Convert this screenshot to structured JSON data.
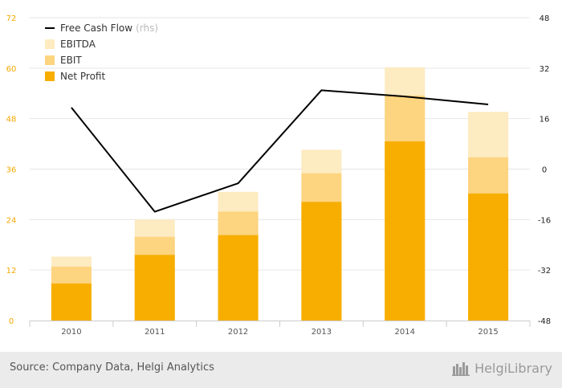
{
  "chart_data": {
    "type": "bar",
    "categories": [
      "2010",
      "2011",
      "2012",
      "2013",
      "2014",
      "2015"
    ],
    "series": [
      {
        "name": "EBITDA",
        "kind": "bar",
        "values": [
          15.2,
          24.0,
          30.6,
          40.6,
          60.2,
          49.6
        ],
        "color": "#fdebc1"
      },
      {
        "name": "EBIT",
        "kind": "bar",
        "values": [
          12.8,
          19.9,
          25.9,
          35.0,
          53.5,
          38.8
        ],
        "color": "#fdd47f"
      },
      {
        "name": "Net Profit",
        "kind": "bar",
        "values": [
          8.8,
          15.6,
          20.3,
          28.2,
          42.6,
          30.2
        ],
        "color": "#f7ae00"
      },
      {
        "name": "Free Cash Flow",
        "kind": "line",
        "axis": "right",
        "values": [
          19.5,
          -13.5,
          -4.5,
          25.0,
          23.0,
          20.5
        ],
        "color": "#000000"
      }
    ],
    "legend": [
      {
        "label": "Free Cash Flow",
        "suffix": "(rhs)",
        "marker": "line",
        "color": "#000000"
      },
      {
        "label": "EBITDA",
        "marker": "square",
        "color": "#fdebc1"
      },
      {
        "label": "EBIT",
        "marker": "square",
        "color": "#fdd47f"
      },
      {
        "label": "Net Profit",
        "marker": "square",
        "color": "#f7ae00"
      }
    ],
    "legend_position": "top-left",
    "y_left": {
      "min": 0,
      "max": 72,
      "ticks": [
        0,
        12,
        24,
        36,
        48,
        60,
        72
      ],
      "tick_color": "#f5a800"
    },
    "y_right": {
      "min": -48,
      "max": 48,
      "ticks": [
        -48,
        -32,
        -16,
        0,
        16,
        32,
        48
      ],
      "tick_color": "#222222"
    },
    "grid": "horizontal"
  },
  "footer": {
    "source": "Source: Company Data, Helgi Analytics",
    "brand": "HelgiLibrary"
  }
}
